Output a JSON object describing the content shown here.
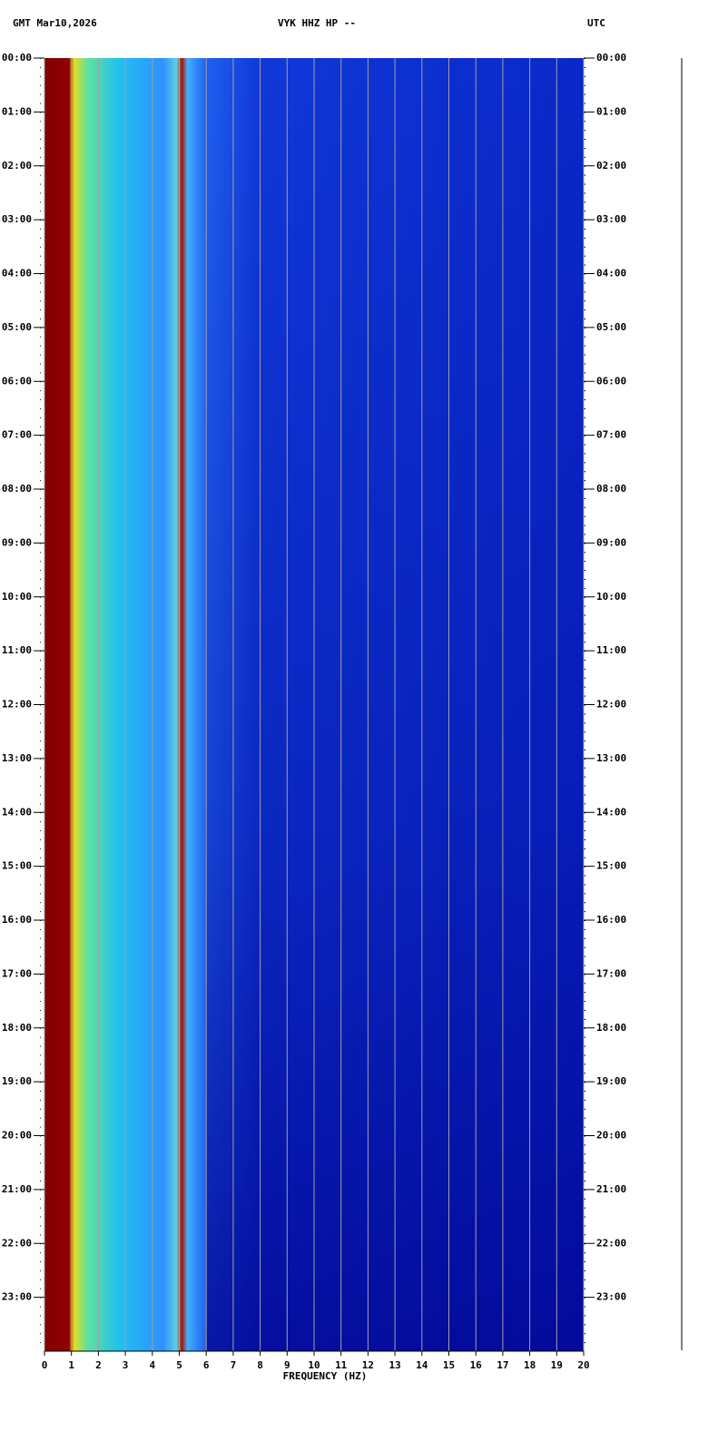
{
  "chart_data": {
    "type": "spectrogram",
    "title_left": "GMT  Mar10,2026",
    "title": "VYK HHZ HP --",
    "title_right": "UTC",
    "xlabel": "FREQUENCY (HZ)",
    "xlim": [
      0,
      20
    ],
    "xticks": [
      0,
      1,
      2,
      3,
      4,
      5,
      6,
      7,
      8,
      9,
      10,
      11,
      12,
      13,
      14,
      15,
      16,
      17,
      18,
      19,
      20
    ],
    "ylim": [
      0,
      24
    ],
    "yticks": [
      {
        "value": 0,
        "label": "00:00"
      },
      {
        "value": 1,
        "label": "01:00"
      },
      {
        "value": 2,
        "label": "02:00"
      },
      {
        "value": 3,
        "label": "03:00"
      },
      {
        "value": 4,
        "label": "04:00"
      },
      {
        "value": 5,
        "label": "05:00"
      },
      {
        "value": 6,
        "label": "06:00"
      },
      {
        "value": 7,
        "label": "07:00"
      },
      {
        "value": 8,
        "label": "08:00"
      },
      {
        "value": 9,
        "label": "09:00"
      },
      {
        "value": 10,
        "label": "10:00"
      },
      {
        "value": 11,
        "label": "11:00"
      },
      {
        "value": 12,
        "label": "12:00"
      },
      {
        "value": 13,
        "label": "13:00"
      },
      {
        "value": 14,
        "label": "14:00"
      },
      {
        "value": 15,
        "label": "15:00"
      },
      {
        "value": 16,
        "label": "16:00"
      },
      {
        "value": 17,
        "label": "17:00"
      },
      {
        "value": 18,
        "label": "18:00"
      },
      {
        "value": 19,
        "label": "19:00"
      },
      {
        "value": 20,
        "label": "20:00"
      },
      {
        "value": 21,
        "label": "21:00"
      },
      {
        "value": 22,
        "label": "22:00"
      },
      {
        "value": 23,
        "label": "23:00"
      }
    ],
    "grid": true
  }
}
